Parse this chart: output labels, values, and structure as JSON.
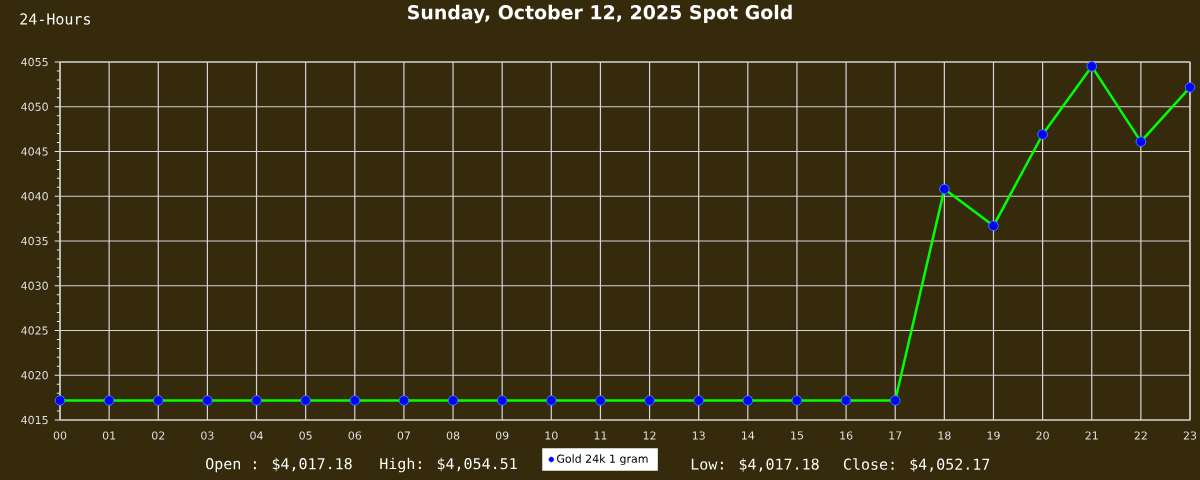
{
  "chart_data": {
    "type": "line",
    "title": "Sunday, October 12, 2025 Spot Gold",
    "annotations": [
      "24-Hours",
      "Open : $4,017.18",
      "High: $4,054.51",
      "Low: $4,017.18",
      "Close: $4,052.17"
    ],
    "categories": [
      "00",
      "01",
      "02",
      "03",
      "04",
      "05",
      "06",
      "07",
      "08",
      "09",
      "10",
      "11",
      "12",
      "13",
      "14",
      "15",
      "16",
      "17",
      "18",
      "19",
      "20",
      "21",
      "22",
      "23"
    ],
    "series": [
      {
        "name": "Gold 24k 1 gram",
        "color": "#00ff00",
        "colors": [
          "#0000ff",
          "#0000ff",
          "#0000ff",
          "#0000ff",
          "#0000ff",
          "#0000ff",
          "#0000ff",
          "#0000ff",
          "#0000ff",
          "#0000ff",
          "#0000ff",
          "#0000ff",
          "#0000ff",
          "#0000ff",
          "#0000ff",
          "#0000ff",
          "#0000ff",
          "#0000ff",
          "#0000ff",
          "#0000ff",
          "#0000ff",
          "#0000ff",
          "#0000ff",
          "#0000ff"
        ],
        "values": [
          4017.18,
          4017.18,
          4017.18,
          4017.18,
          4017.18,
          4017.18,
          4017.18,
          4017.18,
          4017.18,
          4017.18,
          4017.18,
          4017.18,
          4017.18,
          4017.18,
          4017.18,
          4017.18,
          4017.18,
          4017.18,
          4040.8,
          4036.7,
          4046.9,
          4054.51,
          4046.1,
          4052.17
        ]
      }
    ],
    "ylim": [
      4015,
      4055
    ],
    "yticks": [
      4015,
      {
        "value": 4016,
        "label": null
      },
      {
        "value": 4017,
        "label": null
      },
      {
        "value": 4018,
        "label": null
      },
      {
        "value": 4019,
        "label": null
      },
      4020,
      {
        "value": 4021,
        "label": null
      },
      {
        "value": 4022,
        "label": null
      },
      {
        "value": 4023,
        "label": null
      },
      {
        "value": 4024,
        "label": null
      },
      4025,
      {
        "value": 4026,
        "label": null
      },
      {
        "value": 4027,
        "label": null
      },
      {
        "value": 4028,
        "label": null
      },
      {
        "value": 4029,
        "label": null
      },
      4030,
      {
        "value": 4031,
        "label": null
      },
      {
        "value": 4032,
        "label": null
      },
      {
        "value": 4033,
        "label": null
      },
      {
        "value": 4034,
        "label": null
      },
      4035,
      {
        "value": 4036,
        "label": null
      },
      {
        "value": 4037,
        "label": null
      },
      {
        "value": 4038,
        "label": null
      },
      {
        "value": 4039,
        "label": null
      },
      4040,
      {
        "value": 4041,
        "label": null
      },
      {
        "value": 4042,
        "label": null
      },
      {
        "value": 4043,
        "label": null
      },
      {
        "value": 4044,
        "label": null
      },
      4045,
      {
        "value": 4046,
        "label": null
      },
      {
        "value": 4047,
        "label": null
      },
      {
        "value": 4048,
        "label": null
      },
      {
        "value": 4049,
        "label": null
      },
      4050,
      {
        "value": 4051,
        "label": null
      },
      {
        "value": 4052,
        "label": null
      },
      {
        "value": 4053,
        "label": null
      },
      {
        "value": 4054,
        "label": null
      },
      4055
    ],
    "grid": true,
    "legend": "bottom",
    "marker": "circle",
    "line_style": "solid"
  }
}
